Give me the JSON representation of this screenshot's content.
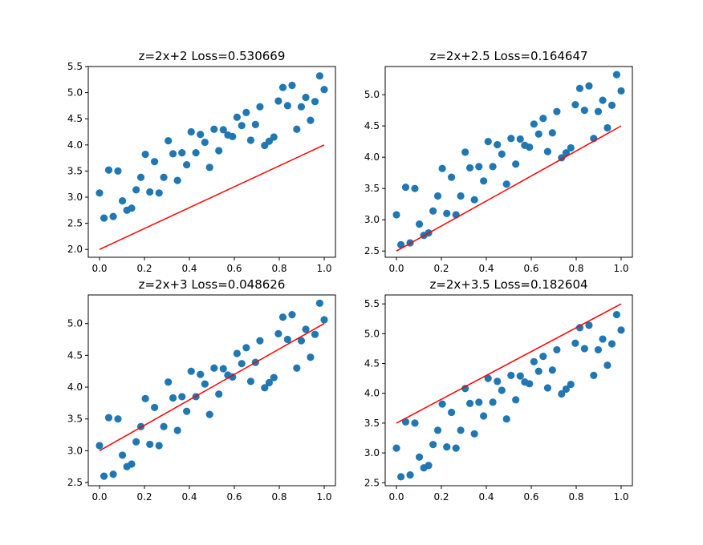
{
  "chart_data": [
    {
      "type": "scatter",
      "title": "z=2x+2 Loss=0.530669",
      "xlim": [
        -0.05,
        1.05
      ],
      "ylim": [
        1.85,
        5.5
      ],
      "xticks": [
        0.0,
        0.2,
        0.4,
        0.6,
        0.8,
        1.0
      ],
      "xtick_labels": [
        "0.0",
        "0.2",
        "0.4",
        "0.6",
        "0.8",
        "1.0"
      ],
      "yticks": [
        2.0,
        2.5,
        3.0,
        3.5,
        4.0,
        4.5,
        5.0,
        5.5
      ],
      "ytick_labels": [
        "2.0",
        "2.5",
        "3.0",
        "3.5",
        "4.0",
        "4.5",
        "5.0",
        "5.5"
      ],
      "line": {
        "x": [
          0,
          1
        ],
        "y": [
          2.0,
          4.0
        ],
        "color": "#ff0000"
      }
    },
    {
      "type": "scatter",
      "title": "z=2x+2.5 Loss=0.164647",
      "xlim": [
        -0.05,
        1.05
      ],
      "ylim": [
        2.4,
        5.45
      ],
      "xticks": [
        0.0,
        0.2,
        0.4,
        0.6,
        0.8,
        1.0
      ],
      "xtick_labels": [
        "0.0",
        "0.2",
        "0.4",
        "0.6",
        "0.8",
        "1.0"
      ],
      "yticks": [
        2.5,
        3.0,
        3.5,
        4.0,
        4.5,
        5.0
      ],
      "ytick_labels": [
        "2.5",
        "3.0",
        "3.5",
        "4.0",
        "4.5",
        "5.0"
      ],
      "line": {
        "x": [
          0,
          1
        ],
        "y": [
          2.5,
          4.5
        ],
        "color": "#ff0000"
      }
    },
    {
      "type": "scatter",
      "title": "z=2x+3 Loss=0.048626",
      "xlim": [
        -0.05,
        1.05
      ],
      "ylim": [
        2.45,
        5.45
      ],
      "xticks": [
        0.0,
        0.2,
        0.4,
        0.6,
        0.8,
        1.0
      ],
      "xtick_labels": [
        "0.0",
        "0.2",
        "0.4",
        "0.6",
        "0.8",
        "1.0"
      ],
      "yticks": [
        2.5,
        3.0,
        3.5,
        4.0,
        4.5,
        5.0
      ],
      "ytick_labels": [
        "2.5",
        "3.0",
        "3.5",
        "4.0",
        "4.5",
        "5.0"
      ],
      "line": {
        "x": [
          0,
          1
        ],
        "y": [
          3.0,
          5.0
        ],
        "color": "#ff0000"
      }
    },
    {
      "type": "scatter",
      "title": "z=2x+3.5 Loss=0.182604",
      "xlim": [
        -0.05,
        1.05
      ],
      "ylim": [
        2.45,
        5.65
      ],
      "xticks": [
        0.0,
        0.2,
        0.4,
        0.6,
        0.8,
        1.0
      ],
      "xtick_labels": [
        "0.0",
        "0.2",
        "0.4",
        "0.6",
        "0.8",
        "1.0"
      ],
      "yticks": [
        2.5,
        3.0,
        3.5,
        4.0,
        4.5,
        5.0,
        5.5
      ],
      "ytick_labels": [
        "2.5",
        "3.0",
        "3.5",
        "4.0",
        "4.5",
        "5.0",
        "5.5"
      ],
      "line": {
        "x": [
          0,
          1
        ],
        "y": [
          3.5,
          5.5
        ],
        "color": "#ff0000"
      }
    }
  ],
  "shared_points": {
    "x": [
      0.0,
      0.02,
      0.041,
      0.061,
      0.082,
      0.102,
      0.122,
      0.143,
      0.163,
      0.184,
      0.204,
      0.224,
      0.245,
      0.265,
      0.286,
      0.306,
      0.327,
      0.347,
      0.367,
      0.388,
      0.408,
      0.429,
      0.449,
      0.469,
      0.49,
      0.51,
      0.531,
      0.551,
      0.571,
      0.592,
      0.612,
      0.633,
      0.653,
      0.673,
      0.694,
      0.714,
      0.735,
      0.755,
      0.776,
      0.796,
      0.816,
      0.837,
      0.857,
      0.878,
      0.898,
      0.918,
      0.939,
      0.959,
      0.98,
      1.0
    ],
    "y": [
      3.08,
      2.6,
      3.52,
      2.63,
      3.5,
      2.93,
      2.75,
      2.79,
      3.14,
      3.38,
      3.82,
      3.1,
      3.68,
      3.08,
      3.38,
      4.08,
      3.83,
      3.32,
      3.85,
      3.62,
      4.25,
      3.85,
      4.2,
      4.05,
      3.57,
      4.3,
      3.89,
      4.29,
      4.19,
      4.16,
      4.53,
      4.37,
      4.62,
      4.09,
      4.39,
      4.73,
      3.99,
      4.07,
      4.15,
      4.84,
      5.1,
      4.75,
      5.14,
      4.3,
      4.73,
      4.91,
      4.47,
      4.83,
      5.32,
      5.06
    ],
    "color": "#1f77b4"
  }
}
